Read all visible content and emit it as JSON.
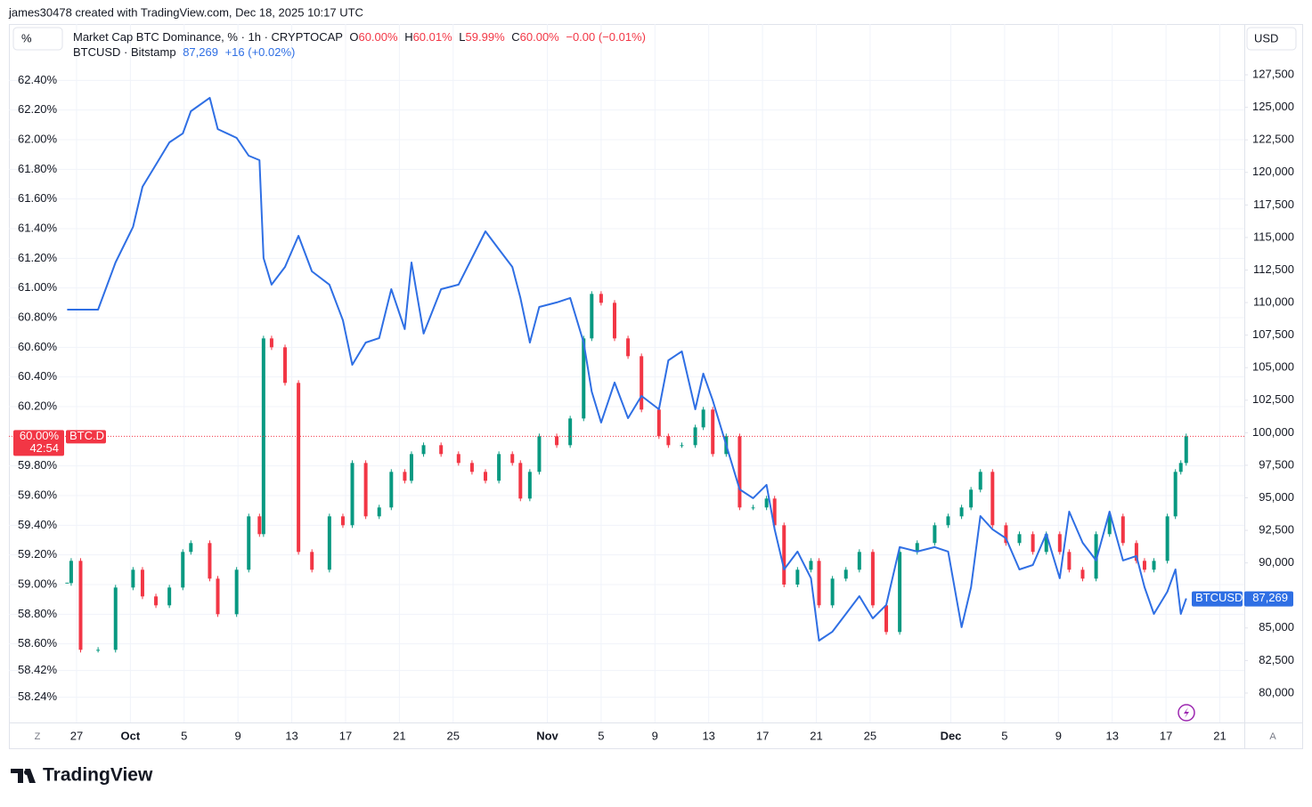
{
  "header": {
    "text": "james30478 created with TradingView.com, Dec 18, 2025 10:17 UTC"
  },
  "ui": {
    "left_unit": "%",
    "right_unit": "USD",
    "left_button": "Z",
    "right_button": "A"
  },
  "legend": {
    "o": "O",
    "o_value": "60.00%",
    "h": "H",
    "h_value": "60.01%",
    "l": "L",
    "l_value": "59.99%",
    "c": "C",
    "c_value": "60.00%",
    "change": "−0.00 (−0.01%)",
    "btc_value": "87,269",
    "btc_change": "+16 (+0.02%)",
    "dom_badge": "60.00%",
    "dom_countdown": "42:54",
    "dom_symbol": "BTC.D",
    "btc_symbol": "BTCUSD",
    "btc_badge": "87,269"
  },
  "footer": {
    "brand": "TradingView"
  },
  "chart_data": {
    "type": "combo",
    "x": [
      -0.7,
      -0.4,
      0.3,
      1.6,
      2.9,
      4.2,
      4.9,
      5.9,
      6.9,
      7.9,
      8.5,
      9.9,
      10.5,
      11.9,
      12.8,
      13.6,
      13.9,
      14.5,
      15.5,
      16.5,
      17.5,
      18.8,
      19.8,
      20.5,
      21.5,
      22.5,
      23.4,
      24.4,
      24.9,
      25.8,
      27.1,
      28.4,
      29.4,
      30.4,
      31.4,
      32.4,
      33.0,
      33.7,
      34.4,
      35.7,
      36.7,
      37.7,
      38.3,
      39.0,
      40.0,
      41.0,
      42.0,
      43.3,
      44.0,
      45.0,
      46.0,
      46.6,
      47.3,
      48.3,
      49.3,
      50.3,
      51.3,
      51.9,
      52.6,
      53.6,
      54.6,
      55.2,
      56.2,
      57.2,
      58.2,
      59.2,
      60.2,
      61.2,
      62.5,
      63.8,
      64.8,
      65.8,
      66.5,
      67.2,
      68.1,
      69.1,
      70.1,
      71.1,
      72.1,
      73.1,
      73.8,
      74.8,
      75.8,
      76.8,
      77.8,
      78.8,
      79.4,
      80.1,
      81.1,
      81.7,
      82.1,
      82.5
    ],
    "xlim": [
      -5.03,
      86.82
    ],
    "xticks": [
      {
        "value": 0,
        "label": "27"
      },
      {
        "value": 4,
        "label": "Oct"
      },
      {
        "value": 8,
        "label": "5"
      },
      {
        "value": 12,
        "label": "9"
      },
      {
        "value": 16,
        "label": "13"
      },
      {
        "value": 20,
        "label": "17"
      },
      {
        "value": 24,
        "label": "21"
      },
      {
        "value": 28,
        "label": "25"
      },
      {
        "value": 35,
        "label": "Nov"
      },
      {
        "value": 39,
        "label": "5"
      },
      {
        "value": 43,
        "label": "9"
      },
      {
        "value": 47,
        "label": "13"
      },
      {
        "value": 51,
        "label": "17"
      },
      {
        "value": 55,
        "label": "21"
      },
      {
        "value": 59,
        "label": "25"
      },
      {
        "value": 65,
        "label": "Dec"
      },
      {
        "value": 69,
        "label": "5"
      },
      {
        "value": 73,
        "label": "9"
      },
      {
        "value": 77,
        "label": "13"
      },
      {
        "value": 81,
        "label": "17"
      },
      {
        "value": 85,
        "label": "21"
      }
    ],
    "ylim": [
      58.07,
      62.78
    ],
    "yticks": [
      {
        "value": 62.4,
        "label": "62.40%"
      },
      {
        "value": 62.2,
        "label": "62.20%"
      },
      {
        "value": 62.0,
        "label": "62.00%"
      },
      {
        "value": 61.8,
        "label": "61.80%"
      },
      {
        "value": 61.6,
        "label": "61.60%"
      },
      {
        "value": 61.4,
        "label": "61.40%"
      },
      {
        "value": 61.2,
        "label": "61.20%"
      },
      {
        "value": 61.0,
        "label": "61.00%"
      },
      {
        "value": 60.8,
        "label": "60.80%"
      },
      {
        "value": 60.6,
        "label": "60.60%"
      },
      {
        "value": 60.4,
        "label": "60.40%"
      },
      {
        "value": 60.2,
        "label": "60.20%"
      },
      {
        "value": 59.8,
        "label": "59.80%"
      },
      {
        "value": 59.6,
        "label": "59.60%"
      },
      {
        "value": 59.4,
        "label": "59.40%"
      },
      {
        "value": 59.2,
        "label": "59.20%"
      },
      {
        "value": 59.0,
        "label": "59.00%"
      },
      {
        "value": 58.8,
        "label": "58.80%"
      },
      {
        "value": 58.6,
        "label": "58.60%"
      },
      {
        "value": 58.42,
        "label": "58.42%"
      },
      {
        "value": 58.24,
        "label": "58.24%"
      }
    ],
    "y2lim": [
      77740,
      131400
    ],
    "y2ticks": [
      {
        "value": 80000,
        "label": "80,000"
      },
      {
        "value": 82500,
        "label": "82,500"
      },
      {
        "value": 85000,
        "label": "85,000"
      },
      {
        "value": 90000,
        "label": "90,000"
      },
      {
        "value": 92500,
        "label": "92,500"
      },
      {
        "value": 95000,
        "label": "95,000"
      },
      {
        "value": 97500,
        "label": "97,500"
      },
      {
        "value": 100000,
        "label": "100,000"
      },
      {
        "value": 102500,
        "label": "102,500"
      },
      {
        "value": 105000,
        "label": "105,000"
      },
      {
        "value": 107500,
        "label": "107,500"
      },
      {
        "value": 110000,
        "label": "110,000"
      },
      {
        "value": 112500,
        "label": "112,500"
      },
      {
        "value": 115000,
        "label": "115,000"
      },
      {
        "value": 117500,
        "label": "117,500"
      },
      {
        "value": 120000,
        "label": "120,000"
      },
      {
        "value": 122500,
        "label": "122,500"
      },
      {
        "value": 125000,
        "label": "125,000"
      },
      {
        "value": 127500,
        "label": "127,500"
      }
    ],
    "grid": true,
    "series": [
      {
        "name": "Market Cap BTC Dominance, % · 1h · CRYPTOCAP",
        "type": "candle",
        "up_color": "#089981",
        "down_color": "#f23645",
        "values": [
          59.01,
          59.16,
          58.56,
          58.56,
          58.98,
          59.1,
          58.92,
          58.86,
          58.98,
          59.22,
          59.28,
          59.04,
          58.8,
          59.1,
          59.46,
          59.34,
          60.66,
          60.6,
          60.36,
          59.22,
          59.1,
          59.46,
          59.4,
          59.82,
          59.46,
          59.52,
          59.76,
          59.7,
          59.88,
          59.94,
          59.88,
          59.82,
          59.76,
          59.7,
          59.88,
          59.82,
          59.58,
          59.76,
          60.0,
          59.94,
          60.12,
          60.66,
          60.96,
          60.9,
          60.66,
          60.54,
          60.18,
          60.0,
          59.94,
          59.94,
          60.06,
          60.18,
          59.88,
          60.0,
          59.52,
          59.52,
          59.58,
          59.4,
          59.0,
          59.1,
          59.16,
          58.86,
          59.04,
          59.1,
          59.22,
          58.86,
          58.68,
          59.22,
          59.28,
          59.4,
          59.46,
          59.52,
          59.64,
          59.76,
          59.4,
          59.28,
          59.34,
          59.22,
          59.34,
          59.22,
          59.1,
          59.04,
          59.34,
          59.46,
          59.28,
          59.16,
          59.1,
          59.16,
          59.46,
          59.76,
          59.82,
          60.0
        ]
      },
      {
        "name": "BTCUSD · Bitstamp",
        "type": "line",
        "color": "#2f6fe4",
        "axis": "y2",
        "values": [
          109460,
          109460,
          109460,
          109460,
          113080,
          115820,
          118900,
          120600,
          122310,
          123000,
          124700,
          125730,
          123330,
          122650,
          121280,
          120940,
          113420,
          111380,
          112740,
          115130,
          112400,
          111380,
          108640,
          105220,
          106930,
          107270,
          111030,
          107960,
          113080,
          107620,
          111030,
          111380,
          113420,
          115470,
          114100,
          112740,
          110350,
          106930,
          109660,
          110010,
          110350,
          106930,
          103170,
          100780,
          103860,
          101120,
          102830,
          101800,
          105560,
          106250,
          101800,
          104540,
          102490,
          99070,
          95650,
          94970,
          96000,
          92580,
          89500,
          90870,
          88820,
          84030,
          84720,
          86080,
          87450,
          85740,
          86770,
          91210,
          90870,
          91210,
          90870,
          85060,
          88130,
          93600,
          92580,
          91890,
          89500,
          89840,
          92240,
          88820,
          93940,
          91550,
          90190,
          93940,
          90190,
          90530,
          88130,
          86080,
          87790,
          89500,
          86080,
          87269
        ]
      }
    ]
  }
}
